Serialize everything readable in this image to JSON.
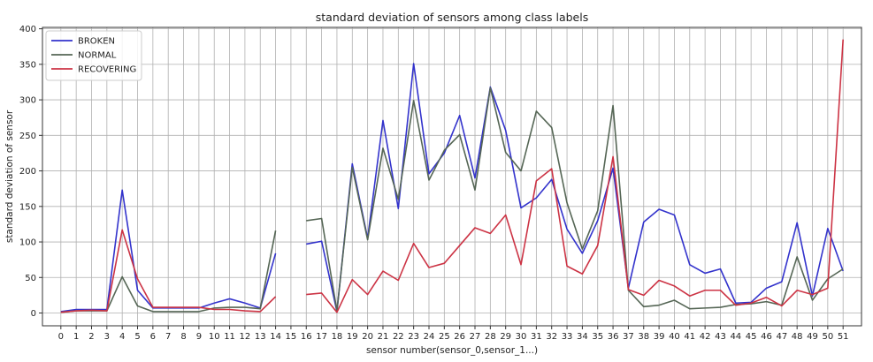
{
  "chart_data": {
    "type": "line",
    "title": "standard deviation of sensors among class labels",
    "xlabel": "sensor number(sensor_0,sensor_1...)",
    "ylabel": "standard deviation of sensor",
    "x": [
      0,
      1,
      2,
      3,
      4,
      5,
      6,
      7,
      8,
      9,
      10,
      11,
      12,
      13,
      14,
      15,
      16,
      17,
      18,
      19,
      20,
      21,
      22,
      23,
      24,
      25,
      26,
      27,
      28,
      29,
      30,
      31,
      32,
      33,
      34,
      35,
      36,
      37,
      38,
      39,
      40,
      41,
      42,
      43,
      44,
      45,
      46,
      47,
      48,
      49,
      50,
      51
    ],
    "xlim": [
      -1.2,
      52.2
    ],
    "ylim": [
      -18,
      402
    ],
    "yticks": [
      0,
      50,
      100,
      150,
      200,
      250,
      300,
      350,
      400
    ],
    "grid": true,
    "legend_position": "top-left",
    "series": [
      {
        "name": "BROKEN",
        "color": "#3333cc",
        "values": [
          2,
          5,
          5,
          5,
          173,
          32,
          7,
          7,
          7,
          7,
          14,
          20,
          14,
          7,
          84,
          null,
          97,
          101,
          2,
          210,
          105,
          271,
          147,
          351,
          196,
          225,
          278,
          190,
          318,
          257,
          148,
          162,
          188,
          118,
          84,
          130,
          204,
          35,
          128,
          146,
          138,
          68,
          56,
          62,
          14,
          15,
          35,
          44,
          127,
          24,
          119,
          59
        ]
      },
      {
        "name": "NORMAL",
        "color": "#556655",
        "values": [
          1,
          3,
          3,
          3,
          51,
          10,
          2,
          2,
          2,
          2,
          7,
          8,
          8,
          6,
          116,
          null,
          130,
          133,
          3,
          205,
          103,
          232,
          160,
          299,
          187,
          229,
          251,
          173,
          317,
          226,
          200,
          284,
          261,
          155,
          90,
          144,
          292,
          32,
          9,
          11,
          18,
          6,
          7,
          8,
          12,
          13,
          16,
          11,
          79,
          18,
          48,
          62
        ]
      },
      {
        "name": "RECOVERING",
        "color": "#cc3344",
        "values": [
          1,
          3,
          4,
          3,
          117,
          48,
          8,
          8,
          8,
          8,
          5,
          5,
          3,
          2,
          23,
          null,
          26,
          28,
          1,
          47,
          26,
          59,
          46,
          98,
          64,
          70,
          95,
          120,
          112,
          138,
          68,
          186,
          203,
          66,
          55,
          95,
          220,
          33,
          25,
          46,
          38,
          24,
          32,
          32,
          11,
          14,
          22,
          10,
          32,
          26,
          35,
          385
        ]
      }
    ]
  }
}
